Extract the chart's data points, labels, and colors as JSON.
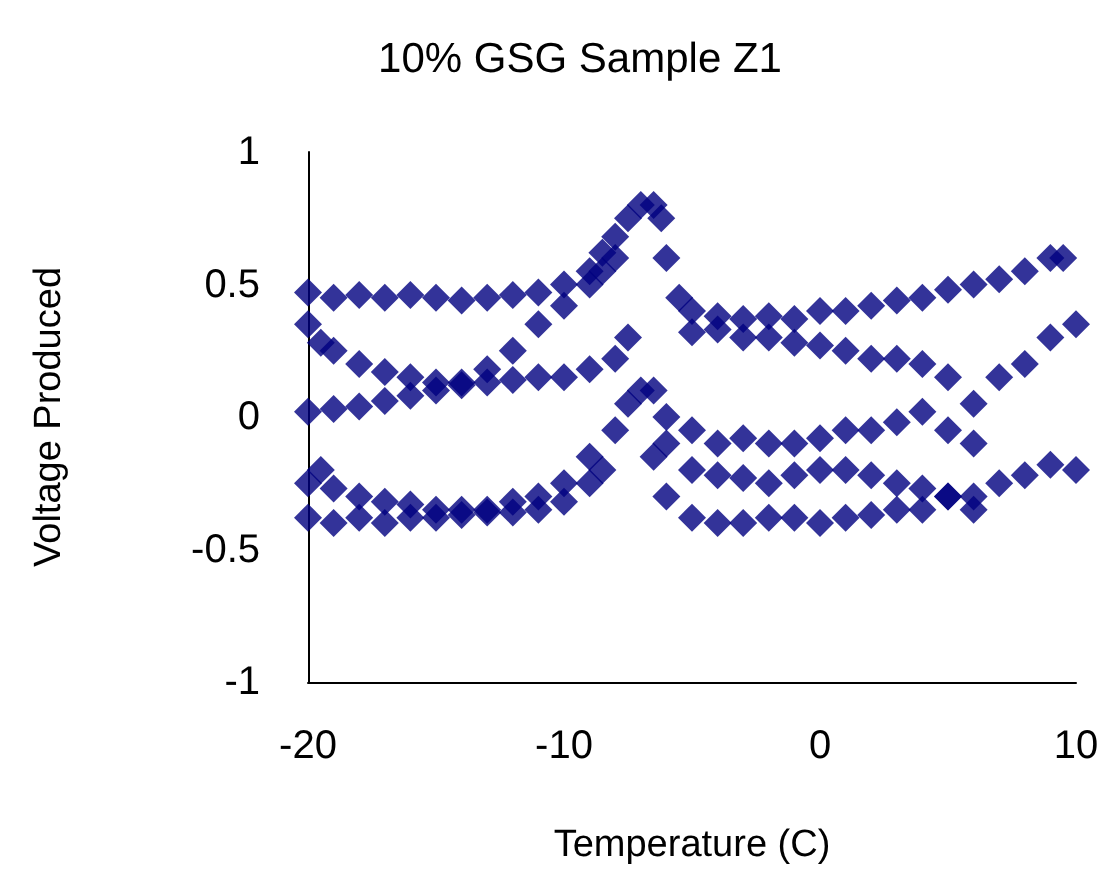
{
  "chart_data": {
    "type": "scatter",
    "title": "10% GSG Sample Z1",
    "xlabel": "Temperature (C)",
    "ylabel": "Voltage Produced",
    "marker": "diamond",
    "grid": false,
    "xlim": [
      -20,
      10
    ],
    "xticks": [
      -20,
      -10,
      0,
      10
    ],
    "ylim": [
      -1,
      1
    ],
    "yticks": [
      -1,
      -0.5,
      0,
      0.5,
      1
    ],
    "series": [
      {
        "color": "#000080",
        "x": [
          -20,
          -19,
          -18,
          -17,
          -16,
          -15,
          -14,
          -13,
          -12,
          -11,
          -10,
          -9,
          -8.5,
          -8,
          -7.5,
          -7,
          -6.5,
          -6.2,
          -6,
          -5.5,
          -5,
          -4,
          -3,
          -2,
          -1,
          0,
          1,
          2,
          3,
          4,
          5,
          6,
          7,
          8,
          9,
          9.5,
          -20,
          -19.5,
          -19,
          -18,
          -17,
          -16,
          -15,
          -14,
          -13,
          -12,
          -11,
          -10,
          -9,
          -8.5,
          -8,
          -5,
          -4,
          -3,
          -2,
          -1,
          0,
          1,
          2,
          3,
          4,
          5,
          6,
          7,
          8,
          9,
          10,
          -20,
          -19,
          -18,
          -17,
          -16,
          -15,
          -14,
          -13,
          -12,
          -11,
          -10,
          -9,
          -8,
          -7.5,
          -6.5,
          -6,
          -5,
          -4,
          -3,
          -2,
          -1,
          0,
          1,
          2,
          3,
          4,
          5,
          6,
          -20,
          -19.5,
          -19,
          -18,
          -17,
          -16,
          -15,
          -14,
          -13,
          -12,
          -11,
          -10,
          -9,
          -8,
          -7.5,
          -7,
          -6,
          -5,
          -4,
          -3,
          -2,
          -1,
          0,
          1,
          2,
          3,
          4,
          5,
          6,
          7,
          8,
          9,
          10,
          -20,
          -19,
          -18,
          -17,
          -16,
          -15,
          -14,
          -13,
          -12,
          -11,
          -10,
          -9,
          -8.5,
          -6.5,
          -6,
          -5,
          -4,
          -3,
          -2,
          -1,
          0,
          1,
          2,
          3,
          4,
          5,
          6
        ],
        "values": [
          0.47,
          0.45,
          0.46,
          0.45,
          0.46,
          0.45,
          0.44,
          0.45,
          0.46,
          0.47,
          0.5,
          0.55,
          0.62,
          0.68,
          0.75,
          0.8,
          0.8,
          0.75,
          0.6,
          0.45,
          0.4,
          0.38,
          0.37,
          0.38,
          0.37,
          0.4,
          0.4,
          0.42,
          0.44,
          0.45,
          0.48,
          0.5,
          0.52,
          0.55,
          0.6,
          0.6,
          0.35,
          0.28,
          0.25,
          0.2,
          0.17,
          0.15,
          0.13,
          0.13,
          0.18,
          0.25,
          0.35,
          0.42,
          0.5,
          0.55,
          0.6,
          0.32,
          0.33,
          0.3,
          0.3,
          0.28,
          0.27,
          0.25,
          0.22,
          0.22,
          0.2,
          0.15,
          0.05,
          0.15,
          0.2,
          0.3,
          0.35,
          0.02,
          0.03,
          0.04,
          0.06,
          0.08,
          0.1,
          0.12,
          0.13,
          0.14,
          0.15,
          0.15,
          0.18,
          0.22,
          0.3,
          0.1,
          0,
          -0.05,
          -0.1,
          -0.08,
          -0.1,
          -0.1,
          -0.08,
          -0.05,
          -0.05,
          -0.02,
          0.02,
          -0.05,
          -0.1,
          -0.25,
          -0.2,
          -0.27,
          -0.3,
          -0.32,
          -0.33,
          -0.35,
          -0.35,
          -0.35,
          -0.32,
          -0.3,
          -0.25,
          -0.15,
          -0.05,
          0.05,
          0.1,
          -0.1,
          -0.2,
          -0.22,
          -0.23,
          -0.25,
          -0.22,
          -0.2,
          -0.2,
          -0.22,
          -0.25,
          -0.27,
          -0.3,
          -0.3,
          -0.25,
          -0.22,
          -0.18,
          -0.2,
          -0.38,
          -0.4,
          -0.38,
          -0.4,
          -0.38,
          -0.38,
          -0.37,
          -0.36,
          -0.36,
          -0.35,
          -0.32,
          -0.25,
          -0.2,
          -0.15,
          -0.3,
          -0.38,
          -0.4,
          -0.4,
          -0.38,
          -0.38,
          -0.4,
          -0.38,
          -0.37,
          -0.35,
          -0.35,
          -0.3,
          -0.35
        ]
      }
    ]
  }
}
